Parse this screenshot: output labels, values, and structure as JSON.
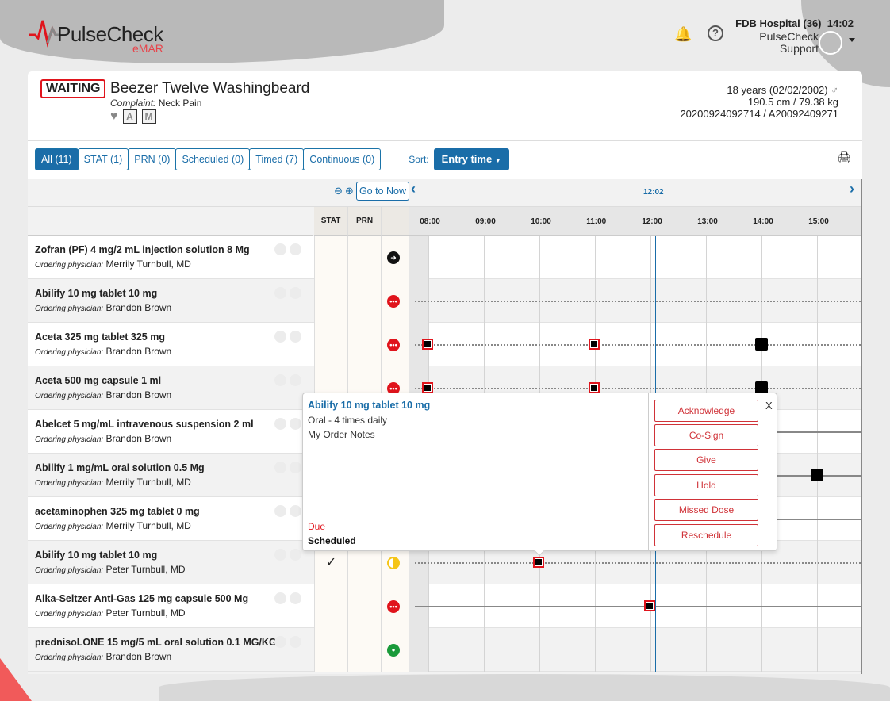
{
  "app": {
    "name": "PulseCheck",
    "sub": "eMAR"
  },
  "header": {
    "hospital": "FDB Hospital (36)",
    "time": "14:02",
    "user_line1": "PulseCheck",
    "user_line2": "Support"
  },
  "patient": {
    "status": "WAITING",
    "name": "Beezer Twelve Washingbeard",
    "complaint_label": "Complaint:",
    "complaint": "Neck Pain",
    "badges": [
      "A",
      "M"
    ],
    "age": "18 years (02/02/2002)",
    "gender_icon": "male-icon",
    "height_weight": "190.5 cm / 79.38 kg",
    "ids": "20200924092714 / A20092409271"
  },
  "filters": [
    {
      "label": "All (11)",
      "active": true
    },
    {
      "label": "STAT (1)"
    },
    {
      "label": "PRN (0)"
    },
    {
      "label": "Scheduled (0)"
    },
    {
      "label": "Timed (7)"
    },
    {
      "label": "Continuous (0)"
    }
  ],
  "sort": {
    "label": "Sort:",
    "value": "Entry time"
  },
  "timeline": {
    "go_to_now": "Go to Now",
    "now_label": "12:02",
    "now_hour": 12.08,
    "start_hour": 7.64,
    "hours": [
      "08:00",
      "09:00",
      "10:00",
      "11:00",
      "12:00",
      "13:00",
      "14:00",
      "15:00"
    ],
    "col_stat": "STAT",
    "col_prn": "PRN"
  },
  "physician_label": "Ordering physician:",
  "colors": {
    "red": "#e0141c",
    "green": "#1a9a3a",
    "yellow": "#f5c518",
    "black": "#111",
    "accent": "#1a6da8"
  },
  "meds": [
    {
      "name": "Zofran (PF) 4 mg/2 mL injection solution 8 Mg",
      "physician": "Merrily Turnbull, MD",
      "icon": "arrow",
      "line": "none",
      "markers": []
    },
    {
      "name": "Abilify 10 mg tablet 10 mg",
      "physician": "Brandon Brown",
      "icon": "red",
      "line": "dotted",
      "markers": []
    },
    {
      "name": "Aceta 325 mg tablet 325 mg",
      "physician": "Brandon Brown",
      "icon": "red",
      "line": "dotted",
      "markers": [
        {
          "h": 8,
          "due": true
        },
        {
          "h": 11,
          "due": true
        },
        {
          "h": 14,
          "due": false
        }
      ]
    },
    {
      "name": "Aceta 500 mg capsule 1 ml",
      "physician": "Brandon Brown",
      "icon": "red",
      "line": "dotted",
      "markers": [
        {
          "h": 8,
          "due": true
        },
        {
          "h": 11,
          "due": true
        },
        {
          "h": 14,
          "due": false
        }
      ]
    },
    {
      "name": "Abelcet 5 mg/mL intravenous suspension 2 ml",
      "physician": "Brandon Brown",
      "icon": "none",
      "line": "solid",
      "markers": []
    },
    {
      "name": "Abilify 1 mg/mL oral solution 0.5 Mg",
      "physician": "Merrily Turnbull, MD",
      "icon": "none",
      "line": "solid",
      "markers": [
        {
          "h": 15,
          "due": false
        }
      ]
    },
    {
      "name": "acetaminophen 325 mg tablet 0 mg",
      "physician": "Merrily Turnbull, MD",
      "icon": "none",
      "line": "solid",
      "markers": []
    },
    {
      "name": "Abilify 10 mg tablet 10 mg",
      "physician": "Peter Turnbull, MD",
      "icon": "half",
      "stat": "✓",
      "line": "dotted",
      "markers": [
        {
          "h": 10,
          "due": true
        }
      ]
    },
    {
      "name": "Alka-Seltzer Anti-Gas 125 mg capsule 500 Mg",
      "physician": "Peter Turnbull, MD",
      "icon": "red",
      "line": "solid",
      "markers": [
        {
          "h": 12,
          "due": true
        }
      ]
    },
    {
      "name": "prednisoLONE 15 mg/5 mL oral solution 0.1 MG/KG",
      "physician": "Brandon Brown",
      "icon": "green",
      "line": "none",
      "markers": []
    }
  ],
  "popup": {
    "title": "Abilify 10 mg tablet 10 mg",
    "route": "Oral - 4 times daily",
    "notes": "My Order Notes",
    "status": "Due",
    "type": "Scheduled",
    "close": "X",
    "actions": [
      "Acknowledge",
      "Co-Sign",
      "Give",
      "Hold",
      "Missed Dose",
      "Reschedule"
    ]
  }
}
